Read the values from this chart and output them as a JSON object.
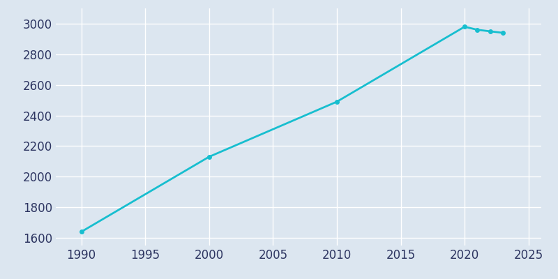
{
  "years": [
    1990,
    2000,
    2010,
    2020,
    2021,
    2022,
    2023
  ],
  "population": [
    1640,
    2130,
    2490,
    2980,
    2960,
    2950,
    2940
  ],
  "line_color": "#17becf",
  "marker": "o",
  "marker_size": 4,
  "line_width": 2,
  "background_color": "#dce6f0",
  "plot_bg_color": "#dce6f0",
  "grid_color": "#ffffff",
  "tick_color": "#2d3561",
  "xlim": [
    1988,
    2026
  ],
  "ylim": [
    1550,
    3100
  ],
  "xticks": [
    1990,
    1995,
    2000,
    2005,
    2010,
    2015,
    2020,
    2025
  ],
  "yticks": [
    1600,
    1800,
    2000,
    2200,
    2400,
    2600,
    2800,
    3000
  ],
  "title_fontsize": 13,
  "tick_fontsize": 12
}
